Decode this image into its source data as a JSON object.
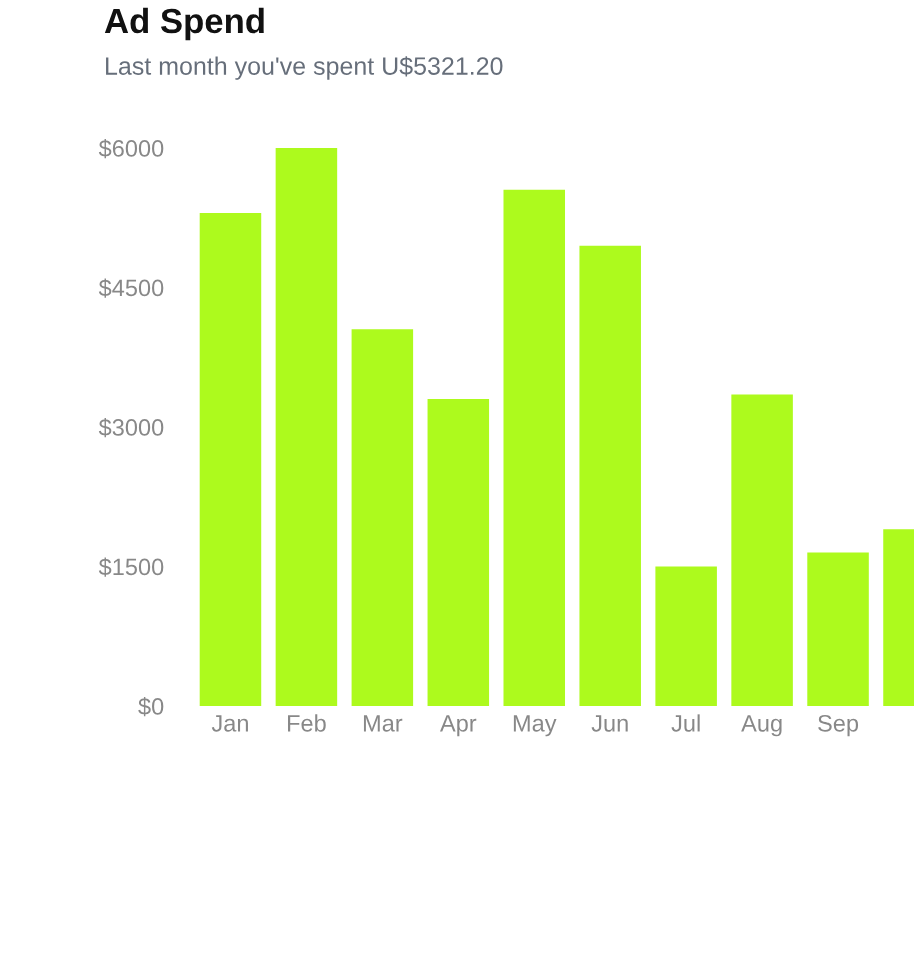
{
  "chart_data": {
    "type": "bar",
    "title": "Ad Spend",
    "subtitle": "Last month you've spent U$5321.20",
    "categories": [
      "Jan",
      "Feb",
      "Mar",
      "Apr",
      "May",
      "Jun",
      "Jul",
      "Aug",
      "Sep",
      null
    ],
    "values": [
      5300,
      6000,
      4050,
      3300,
      5550,
      4950,
      1500,
      3350,
      1650,
      1900
    ],
    "color": "#adfa1d",
    "ylim": [
      0,
      6000
    ],
    "yticks": [
      {
        "value": 0,
        "label": "$0"
      },
      {
        "value": 1500,
        "label": "$1500"
      },
      {
        "value": 3000,
        "label": "$3000"
      },
      {
        "value": 4500,
        "label": "$4500"
      },
      {
        "value": 6000,
        "label": "$6000"
      }
    ],
    "grid": false
  }
}
